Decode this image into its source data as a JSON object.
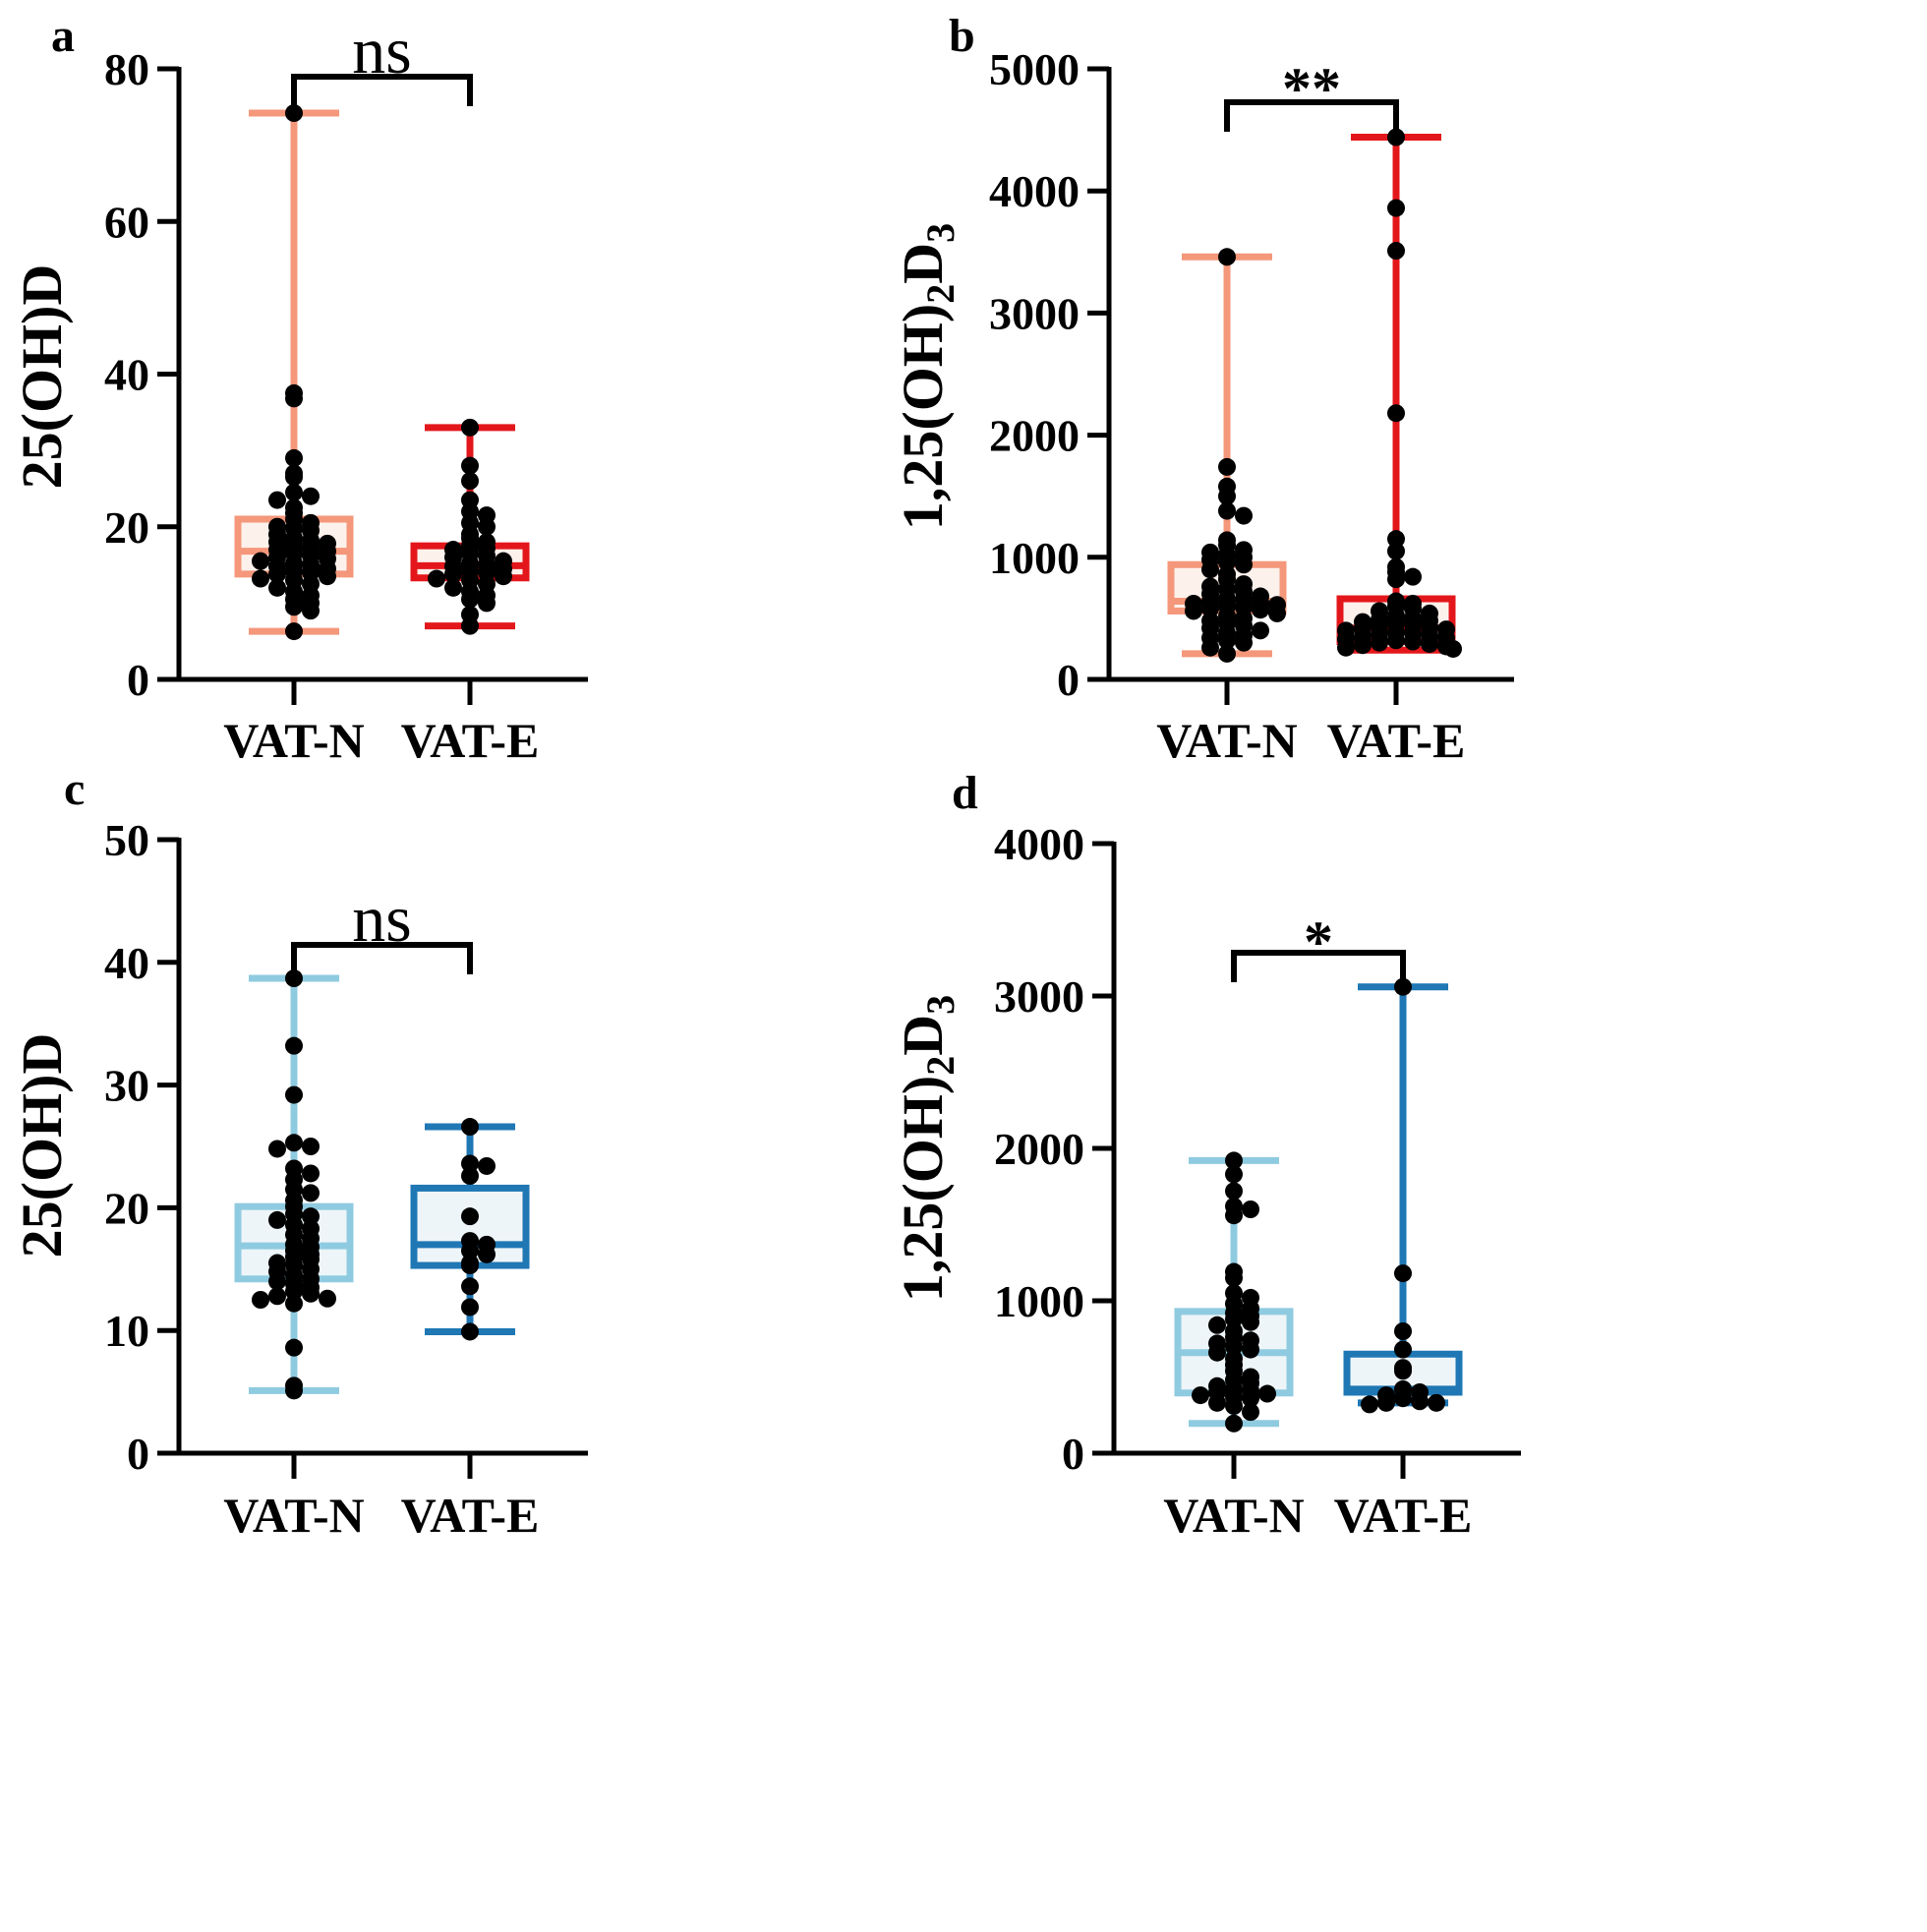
{
  "chart_data": [
    {
      "panel": "a",
      "type": "boxplot",
      "ylabel": "25(OH)D",
      "ylim": [
        0,
        80
      ],
      "yticks": [
        0,
        20,
        40,
        60,
        80
      ],
      "categories": [
        "VAT-N",
        "VAT-E"
      ],
      "significance": "ns",
      "colors": {
        "edge": [
          "#f4977a",
          "#e3171b"
        ],
        "fill": [
          "#fdf1ec",
          "#fdf1ec"
        ]
      },
      "boxes": [
        {
          "name": "VAT-N",
          "min": 6.3,
          "q1": 13.8,
          "median": 16.8,
          "q3": 21.0,
          "max": 74.2
        },
        {
          "name": "VAT-E",
          "min": 7.0,
          "q1": 13.3,
          "median": 14.9,
          "q3": 17.5,
          "max": 33.0
        }
      ],
      "points": [
        [
          74.2,
          37.5,
          36.8,
          29.0,
          27.0,
          26.5,
          24.5,
          24.0,
          23.5,
          22.5,
          21.8,
          21.0,
          20.5,
          20.0,
          19.8,
          19.5,
          19.0,
          18.5,
          18.2,
          18.0,
          17.8,
          17.5,
          17.2,
          17.0,
          16.8,
          16.5,
          16.2,
          16.0,
          15.8,
          15.5,
          15.2,
          15.0,
          14.8,
          14.5,
          14.2,
          14.0,
          13.8,
          13.5,
          13.2,
          13.0,
          12.5,
          12.0,
          11.5,
          11.0,
          10.5,
          10.0,
          9.5,
          9.0,
          6.3
        ],
        [
          33.0,
          28.0,
          26.0,
          23.5,
          22.0,
          21.5,
          20.5,
          20.0,
          19.0,
          18.5,
          18.0,
          17.5,
          17.2,
          17.0,
          16.5,
          16.2,
          16.0,
          15.5,
          15.2,
          15.0,
          14.8,
          14.5,
          14.2,
          14.0,
          13.8,
          13.5,
          13.2,
          13.0,
          12.5,
          12.0,
          11.5,
          11.0,
          10.5,
          10.0,
          8.5,
          7.0
        ]
      ]
    },
    {
      "panel": "b",
      "type": "boxplot",
      "ylabel": "1,25(OH)",
      "ylabel_sub1": "2",
      "ylabel_mid": "D",
      "ylabel_sub2": "3",
      "ylim": [
        0,
        5000
      ],
      "yticks": [
        0,
        1000,
        2000,
        3000,
        4000,
        5000
      ],
      "categories": [
        "VAT-N",
        "VAT-E"
      ],
      "significance": "**",
      "colors": {
        "edge": [
          "#f4977a",
          "#e3171b"
        ],
        "fill": [
          "#fdf1ec",
          "#fdf1ec"
        ]
      },
      "boxes": [
        {
          "name": "VAT-N",
          "min": 210,
          "q1": 560,
          "median": 640,
          "q3": 940,
          "max": 3460
        },
        {
          "name": "VAT-E",
          "min": 240,
          "q1": 310,
          "median": 420,
          "q3": 660,
          "max": 4440
        }
      ],
      "points": [
        [
          3460,
          1740,
          1580,
          1500,
          1380,
          1340,
          1140,
          1100,
          1060,
          1040,
          1020,
          1000,
          980,
          960,
          940,
          900,
          860,
          820,
          780,
          760,
          740,
          720,
          700,
          680,
          660,
          650,
          640,
          630,
          620,
          610,
          600,
          590,
          580,
          570,
          560,
          540,
          520,
          500,
          480,
          460,
          440,
          420,
          400,
          380,
          360,
          340,
          320,
          300,
          260,
          210
        ],
        [
          4440,
          3860,
          3510,
          2180,
          1150,
          1050,
          920,
          880,
          840,
          820,
          640,
          620,
          600,
          580,
          560,
          540,
          520,
          500,
          490,
          480,
          470,
          460,
          450,
          440,
          430,
          420,
          410,
          400,
          390,
          380,
          370,
          360,
          350,
          340,
          330,
          320,
          310,
          300,
          290,
          280,
          270,
          260,
          250
        ]
      ]
    },
    {
      "panel": "c",
      "type": "boxplot",
      "ylabel": "25(OH)D",
      "ylim": [
        0,
        50
      ],
      "yticks": [
        0,
        10,
        20,
        30,
        40,
        50
      ],
      "categories": [
        "VAT-N",
        "VAT-E"
      ],
      "significance": "ns",
      "colors": {
        "edge": [
          "#8fcbe0",
          "#1f77b4"
        ],
        "fill": [
          "#eef5f8",
          "#eef5f8"
        ]
      },
      "boxes": [
        {
          "name": "VAT-N",
          "min": 5.1,
          "q1": 14.2,
          "median": 16.9,
          "q3": 20.1,
          "max": 38.7
        },
        {
          "name": "VAT-E",
          "min": 9.9,
          "q1": 15.3,
          "median": 17.0,
          "q3": 21.6,
          "max": 26.6
        }
      ],
      "points": [
        [
          38.7,
          33.2,
          29.2,
          25.3,
          25.0,
          24.8,
          23.2,
          22.8,
          22.3,
          21.5,
          21.2,
          20.6,
          20.1,
          19.5,
          19.3,
          19.0,
          18.6,
          18.3,
          17.8,
          17.5,
          17.0,
          16.8,
          16.5,
          16.2,
          16.0,
          15.8,
          15.5,
          15.3,
          15.0,
          14.8,
          14.5,
          14.2,
          14.0,
          13.8,
          13.5,
          13.2,
          13.0,
          12.8,
          12.6,
          12.5,
          12.2,
          8.6,
          5.5,
          5.1
        ],
        [
          26.6,
          23.6,
          23.4,
          22.6,
          19.3,
          17.3,
          17.0,
          16.5,
          16.2,
          15.5,
          15.3,
          13.6,
          11.9,
          9.9
        ]
      ]
    },
    {
      "panel": "d",
      "type": "boxplot",
      "ylabel": "1,25(OH)",
      "ylabel_sub1": "2",
      "ylabel_mid": "D",
      "ylabel_sub2": "3",
      "ylim": [
        0,
        4000
      ],
      "yticks": [
        0,
        1000,
        2000,
        3000,
        4000
      ],
      "categories": [
        "VAT-N",
        "VAT-E"
      ],
      "significance": "*",
      "colors": {
        "edge": [
          "#8fcbe0",
          "#1f77b4"
        ],
        "fill": [
          "#eef5f8",
          "#eef5f8"
        ]
      },
      "boxes": [
        {
          "name": "VAT-N",
          "min": 195,
          "q1": 395,
          "median": 660,
          "q3": 930,
          "max": 1920
        },
        {
          "name": "VAT-E",
          "min": 330,
          "q1": 400,
          "median": 420,
          "q3": 650,
          "max": 3060
        }
      ],
      "points": [
        [
          1920,
          1830,
          1720,
          1620,
          1600,
          1560,
          1190,
          1150,
          1050,
          1020,
          980,
          950,
          920,
          900,
          880,
          860,
          840,
          800,
          760,
          740,
          720,
          700,
          680,
          660,
          620,
          580,
          540,
          500,
          480,
          460,
          440,
          420,
          410,
          400,
          390,
          380,
          370,
          360,
          330,
          310,
          270,
          195
        ],
        [
          3060,
          1180,
          800,
          680,
          560,
          540,
          420,
          400,
          380,
          360,
          340,
          330,
          330,
          320
        ]
      ]
    }
  ]
}
